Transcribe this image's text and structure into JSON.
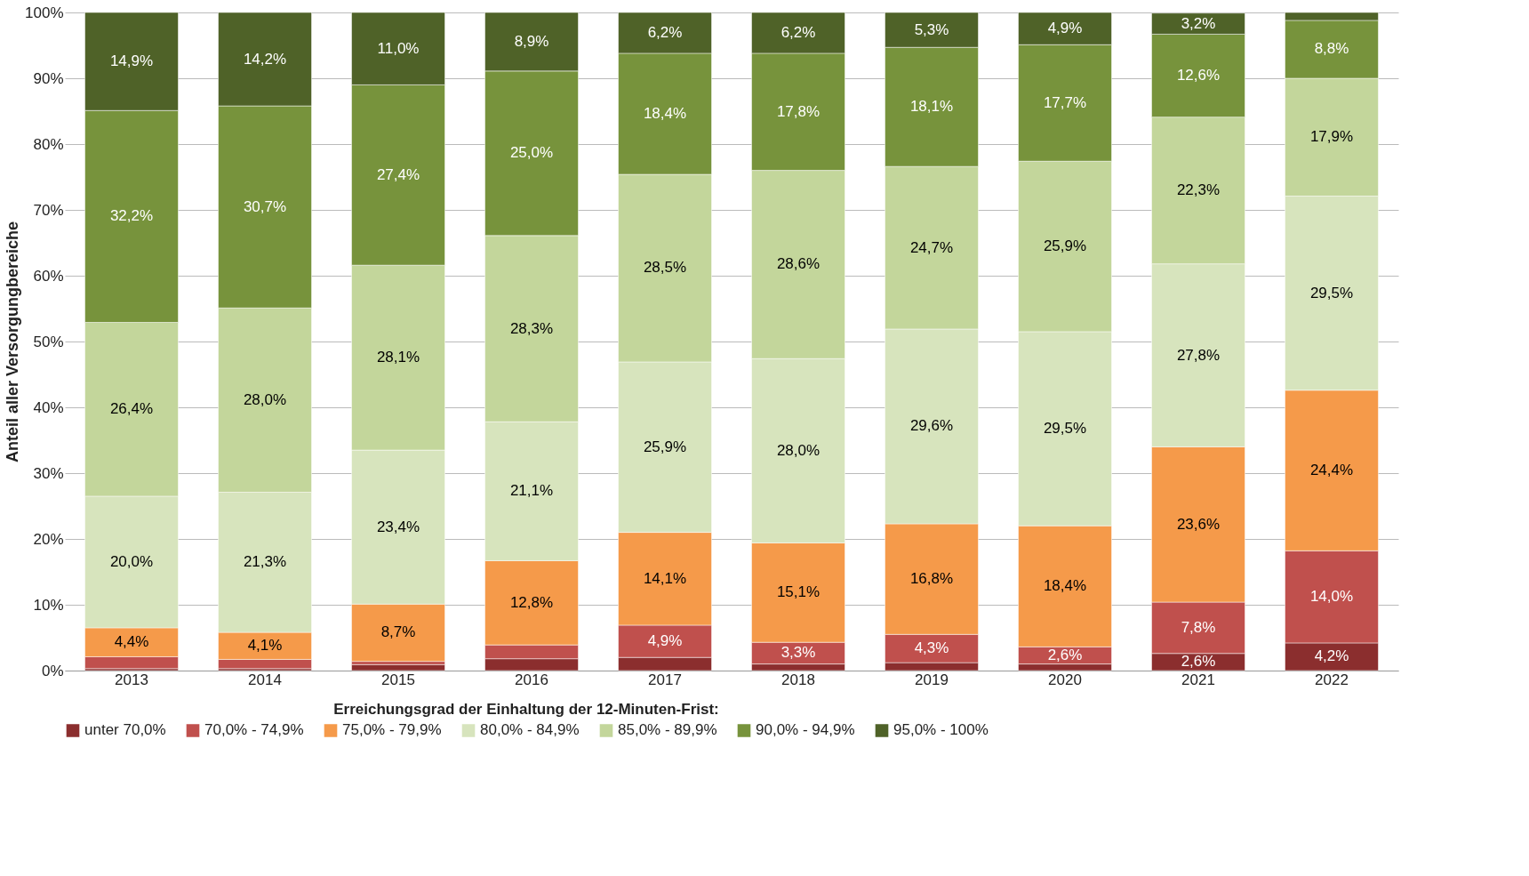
{
  "chart_data": {
    "type": "bar",
    "stacked": true,
    "ylabel": "Anteil aller Versorgungbereiche",
    "legend_title": "Erreichungsgrad der Einhaltung der 12-Minuten-Frist:",
    "legend": "bottom",
    "grid": "y",
    "categories": [
      "2013",
      "2014",
      "2015",
      "2016",
      "2017",
      "2018",
      "2019",
      "2020",
      "2021",
      "2022"
    ],
    "ylim": [
      0,
      100
    ],
    "yticks": [
      {
        "value": 0,
        "label": "0%"
      },
      {
        "value": 10,
        "label": "10%"
      },
      {
        "value": 20,
        "label": "20%"
      },
      {
        "value": 30,
        "label": "30%"
      },
      {
        "value": 40,
        "label": "40%"
      },
      {
        "value": 50,
        "label": "50%"
      },
      {
        "value": 60,
        "label": "60%"
      },
      {
        "value": 70,
        "label": "70%"
      },
      {
        "value": 80,
        "label": "80%"
      },
      {
        "value": 90,
        "label": "90%"
      },
      {
        "value": 100,
        "label": "100%"
      }
    ],
    "series": [
      {
        "name": "unter 70,0%",
        "color": "#8b2e2e",
        "values": [
          0.3,
          0.3,
          0.9,
          1.8,
          2.0,
          1.0,
          1.2,
          1.0,
          2.6,
          4.2
        ],
        "value_labels": [
          null,
          null,
          null,
          null,
          null,
          null,
          null,
          null,
          "2,6%",
          "4,2%"
        ]
      },
      {
        "name": "70,0% - 74,9%",
        "color": "#c0504d",
        "values": [
          1.8,
          1.4,
          0.5,
          2.1,
          4.9,
          3.3,
          4.3,
          2.6,
          7.8,
          14.0
        ],
        "value_labels": [
          null,
          null,
          null,
          null,
          "4,9%",
          "3,3%",
          "4,3%",
          "2,6%",
          "7,8%",
          "14,0%"
        ]
      },
      {
        "name": "75,0% - 79,9%",
        "color": "#f59a4a",
        "values": [
          4.4,
          4.1,
          8.7,
          12.8,
          14.1,
          15.1,
          16.8,
          18.4,
          23.6,
          24.4
        ],
        "value_labels": [
          "4,4%",
          "4,1%",
          "8,7%",
          "12,8%",
          "14,1%",
          "15,1%",
          "16,8%",
          "18,4%",
          "23,6%",
          "24,4%"
        ]
      },
      {
        "name": "80,0% - 84,9%",
        "color": "#d7e4bd",
        "values": [
          20.0,
          21.3,
          23.4,
          21.1,
          25.9,
          28.0,
          29.6,
          29.5,
          27.8,
          29.5
        ],
        "value_labels": [
          "20,0%",
          "21,3%",
          "23,4%",
          "21,1%",
          "25,9%",
          "28,0%",
          "29,6%",
          "29,5%",
          "27,8%",
          "29,5%"
        ]
      },
      {
        "name": "85,0% - 89,9%",
        "color": "#c3d69b",
        "values": [
          26.4,
          28.0,
          28.1,
          28.3,
          28.5,
          28.6,
          24.7,
          25.9,
          22.3,
          17.9
        ],
        "value_labels": [
          "26,4%",
          "28,0%",
          "28,1%",
          "28,3%",
          "28,5%",
          "28,6%",
          "24,7%",
          "25,9%",
          "22,3%",
          "17,9%"
        ]
      },
      {
        "name": "90,0% - 94,9%",
        "color": "#77933c",
        "values": [
          32.2,
          30.7,
          27.4,
          25.0,
          18.4,
          17.8,
          18.1,
          17.7,
          12.6,
          8.8
        ],
        "value_labels": [
          "32,2%",
          "30,7%",
          "27,4%",
          "25,0%",
          "18,4%",
          "17,8%",
          "18,1%",
          "17,7%",
          "12,6%",
          "8,8%"
        ]
      },
      {
        "name": "95,0% - 100%",
        "color": "#4f6228",
        "values": [
          14.9,
          14.2,
          11.0,
          8.9,
          6.2,
          6.2,
          5.3,
          4.9,
          3.2,
          1.2
        ],
        "value_labels": [
          "14,9%",
          "14,2%",
          "11,0%",
          "8,9%",
          "6,2%",
          "6,2%",
          "5,3%",
          "4,9%",
          "3,2%",
          null
        ]
      }
    ]
  }
}
